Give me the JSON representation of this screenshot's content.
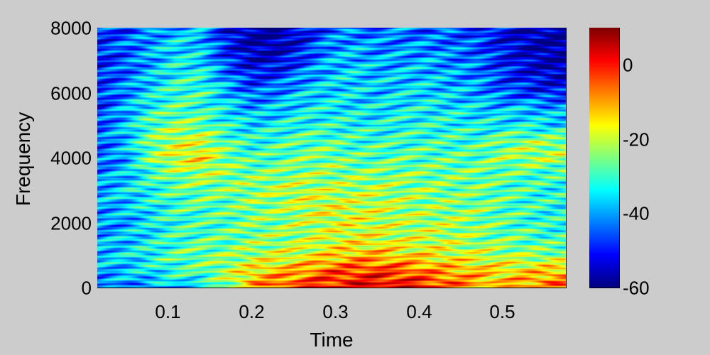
{
  "chart_data": {
    "type": "heatmap",
    "title": "",
    "xlabel": "Time",
    "ylabel": "Frequency",
    "xlim": [
      0.016,
      0.576
    ],
    "ylim": [
      0,
      8000
    ],
    "grid": true,
    "colormap": "jet",
    "x_ticks": [
      {
        "value": 0.1,
        "label": "0.1"
      },
      {
        "value": 0.2,
        "label": "0.2"
      },
      {
        "value": 0.3,
        "label": "0.3"
      },
      {
        "value": 0.4,
        "label": "0.4"
      },
      {
        "value": 0.5,
        "label": "0.5"
      }
    ],
    "y_ticks": [
      {
        "value": 0,
        "label": "0"
      },
      {
        "value": 2000,
        "label": "2000"
      },
      {
        "value": 4000,
        "label": "4000"
      },
      {
        "value": 6000,
        "label": "6000"
      },
      {
        "value": 8000,
        "label": "8000"
      }
    ],
    "colorbar": {
      "range": [
        -60,
        10
      ],
      "ticks": [
        {
          "value": 0,
          "label": "0"
        },
        {
          "value": -20,
          "label": "-20"
        },
        {
          "value": -40,
          "label": "-40"
        },
        {
          "value": -60,
          "label": "-60"
        }
      ]
    },
    "time_axis": [
      0.02,
      0.05,
      0.08,
      0.11,
      0.14,
      0.17,
      0.2,
      0.23,
      0.26,
      0.29,
      0.32,
      0.35,
      0.38,
      0.41,
      0.44,
      0.47,
      0.5,
      0.53,
      0.56
    ],
    "freq_axis": [
      0,
      500,
      1000,
      1500,
      2000,
      2500,
      3000,
      3500,
      4000,
      4500,
      5000,
      5500,
      6000,
      6500,
      7000,
      7500,
      8000
    ],
    "power_db": [
      [
        -45,
        -42,
        -40,
        -38,
        -35,
        -25,
        -10,
        -5,
        -2,
        0,
        2,
        3,
        2,
        0,
        -5,
        -10,
        -12,
        -8,
        -5
      ],
      [
        -40,
        -38,
        -35,
        -30,
        -28,
        -22,
        -15,
        -12,
        -10,
        -5,
        -3,
        -2,
        -4,
        -8,
        -10,
        -12,
        -15,
        -14,
        -12
      ],
      [
        -38,
        -36,
        -32,
        -28,
        -26,
        -25,
        -22,
        -20,
        -18,
        -15,
        -12,
        -12,
        -14,
        -16,
        -18,
        -20,
        -22,
        -24,
        -24
      ],
      [
        -40,
        -38,
        -34,
        -30,
        -28,
        -28,
        -25,
        -24,
        -22,
        -20,
        -18,
        -18,
        -20,
        -20,
        -22,
        -24,
        -26,
        -28,
        -30
      ],
      [
        -42,
        -40,
        -35,
        -30,
        -30,
        -28,
        -25,
        -25,
        -22,
        -20,
        -18,
        -20,
        -22,
        -22,
        -22,
        -25,
        -28,
        -30,
        -32
      ],
      [
        -40,
        -38,
        -34,
        -30,
        -28,
        -28,
        -25,
        -24,
        -20,
        -18,
        -20,
        -20,
        -22,
        -24,
        -25,
        -25,
        -28,
        -30,
        -32
      ],
      [
        -40,
        -36,
        -32,
        -28,
        -26,
        -26,
        -24,
        -22,
        -20,
        -22,
        -22,
        -22,
        -24,
        -24,
        -26,
        -26,
        -28,
        -30,
        -32
      ],
      [
        -42,
        -38,
        -30,
        -25,
        -22,
        -24,
        -26,
        -25,
        -24,
        -24,
        -25,
        -25,
        -25,
        -26,
        -26,
        -26,
        -28,
        -28,
        -30
      ],
      [
        -45,
        -40,
        -25,
        -18,
        -15,
        -25,
        -30,
        -28,
        -26,
        -25,
        -28,
        -28,
        -28,
        -28,
        -28,
        -28,
        -24,
        -22,
        -22
      ],
      [
        -45,
        -38,
        -26,
        -20,
        -20,
        -28,
        -32,
        -30,
        -28,
        -28,
        -30,
        -30,
        -30,
        -30,
        -30,
        -30,
        -26,
        -24,
        -24
      ],
      [
        -45,
        -38,
        -28,
        -24,
        -26,
        -32,
        -36,
        -34,
        -32,
        -32,
        -32,
        -34,
        -32,
        -32,
        -32,
        -34,
        -34,
        -34,
        -36
      ],
      [
        -48,
        -40,
        -32,
        -28,
        -30,
        -35,
        -40,
        -38,
        -35,
        -34,
        -35,
        -35,
        -34,
        -34,
        -35,
        -36,
        -38,
        -38,
        -40
      ],
      [
        -48,
        -42,
        -35,
        -30,
        -30,
        -38,
        -45,
        -42,
        -38,
        -36,
        -36,
        -38,
        -36,
        -36,
        -38,
        -40,
        -45,
        -48,
        -50
      ],
      [
        -48,
        -44,
        -38,
        -32,
        -32,
        -42,
        -50,
        -48,
        -42,
        -38,
        -36,
        -38,
        -38,
        -38,
        -40,
        -42,
        -48,
        -52,
        -55
      ],
      [
        -50,
        -46,
        -40,
        -34,
        -36,
        -48,
        -55,
        -55,
        -48,
        -40,
        -38,
        -40,
        -40,
        -40,
        -42,
        -44,
        -50,
        -55,
        -58
      ],
      [
        -48,
        -44,
        -40,
        -36,
        -38,
        -50,
        -58,
        -58,
        -52,
        -42,
        -40,
        -42,
        -42,
        -42,
        -44,
        -46,
        -52,
        -56,
        -58
      ],
      [
        -50,
        -48,
        -44,
        -38,
        -40,
        -52,
        -58,
        -58,
        -54,
        -46,
        -44,
        -44,
        -44,
        -46,
        -46,
        -48,
        -54,
        -56,
        -58
      ]
    ]
  }
}
